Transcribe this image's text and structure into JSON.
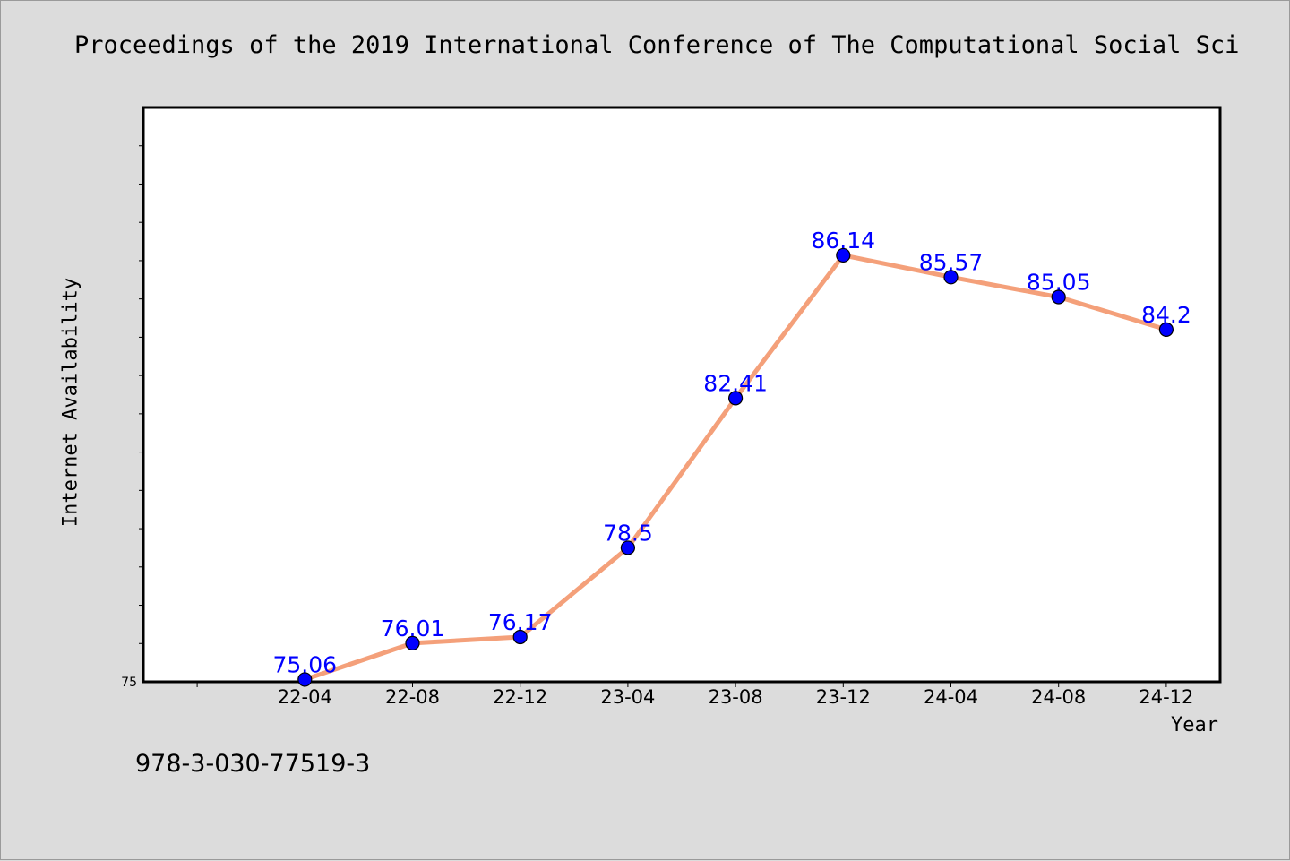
{
  "title": "Proceedings of the 2019 International Conference of The Computational Social Sci",
  "footer_note": "978-3-030-77519-3",
  "colors": {
    "background": "#dcdcdc",
    "plot_background": "#ffffff",
    "line": "#f4a07a",
    "marker": "#0000ff",
    "data_label": "#0000ff"
  },
  "chart_data": {
    "type": "line",
    "xlabel": "Year",
    "ylabel": "Internet Availability",
    "categories": [
      "22-04",
      "22-08",
      "22-12",
      "23-04",
      "23-08",
      "23-12",
      "24-04",
      "24-08",
      "24-12"
    ],
    "values": [
      75.06,
      76.01,
      76.17,
      78.5,
      82.41,
      86.14,
      85.57,
      85.05,
      84.2
    ],
    "y_tick_labels": [
      "75"
    ],
    "ylim": [
      75,
      90
    ],
    "xlim": [
      -1.5,
      8.5
    ],
    "grid": false,
    "legend": "none",
    "markers": true,
    "data_labels": true
  }
}
